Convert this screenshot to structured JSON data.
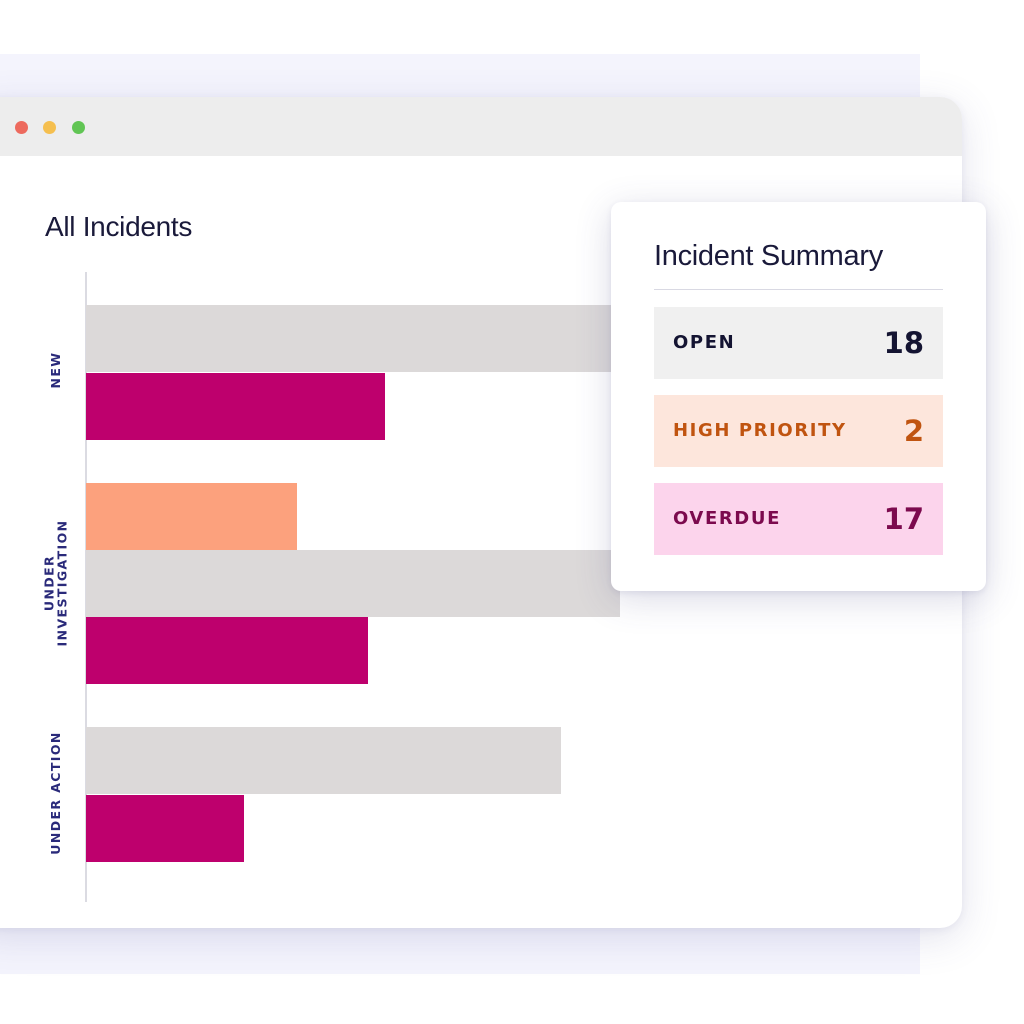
{
  "window": {
    "traffic_lights": [
      {
        "name": "close",
        "color": "#ed6a5e"
      },
      {
        "name": "minimize",
        "color": "#f5bf4f"
      },
      {
        "name": "zoom",
        "color": "#61c554"
      }
    ]
  },
  "colors": {
    "gray_bar": "#dcd9d9",
    "magenta_bar": "#be006d",
    "salmon_bar": "#fca17d",
    "axis_label": "#2a2a7a",
    "open_bg": "#f0f0f0",
    "open_text": "#141432",
    "high_priority_bg": "#fde6dc",
    "high_priority_text": "#c05410",
    "overdue_bg": "#fcd4ec",
    "overdue_text": "#7c0a4e"
  },
  "chart": {
    "title": "All Incidents"
  },
  "chart_data": {
    "type": "bar",
    "orientation": "horizontal",
    "title": "All Incidents",
    "categories": [
      "NEW",
      "UNDER INVESTIGATION",
      "UNDER ACTION"
    ],
    "series": [
      {
        "color": "salmon",
        "values": [
          0,
          12,
          0
        ]
      },
      {
        "color": "gray",
        "values": [
          32,
          31,
          27
        ]
      },
      {
        "color": "magenta",
        "values": [
          17,
          16,
          9
        ]
      }
    ],
    "xlim": [
      0,
      32
    ],
    "grid": false,
    "legend": "none"
  },
  "summary": {
    "title": "Incident Summary",
    "rows": [
      {
        "key": "open",
        "label": "OPEN",
        "value": "18"
      },
      {
        "key": "high_priority",
        "label": "HIGH PRIORITY",
        "value": "2"
      },
      {
        "key": "overdue",
        "label": "OVERDUE",
        "value": "17"
      }
    ]
  }
}
